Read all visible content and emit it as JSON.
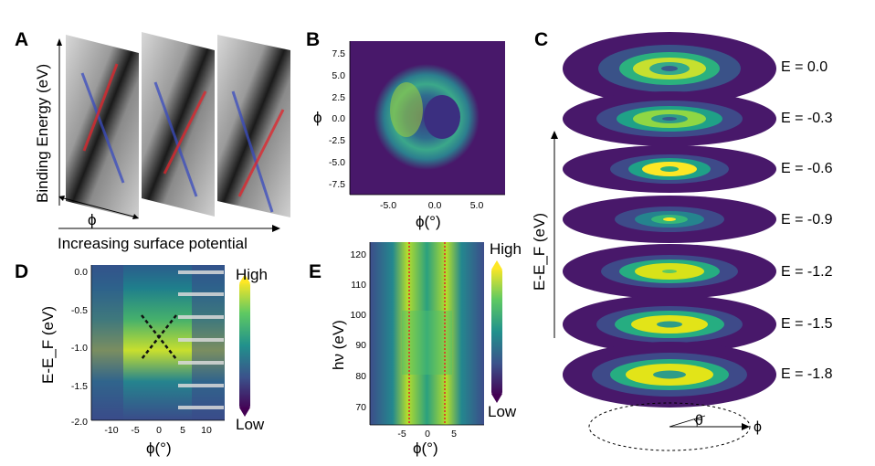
{
  "panel_labels": {
    "a": "A",
    "b": "B",
    "c": "C",
    "d": "D",
    "e": "E"
  },
  "panel_a": {
    "y_label": "Binding Energy (eV)",
    "x_label": "ϕ",
    "arrow_label": "Increasing surface potential"
  },
  "panel_b": {
    "y_label": "ϕ",
    "x_label": "ϕ(°)",
    "y_ticks": [
      "7.5",
      "5.0",
      "2.5",
      "0.0",
      "-2.5",
      "-5.0",
      "-7.5"
    ],
    "x_ticks": [
      "-5.0",
      "0.0",
      "5.0"
    ]
  },
  "panel_c": {
    "y_label": "E-E_F (eV)",
    "energies": [
      "E =  0.0",
      "E = -0.3",
      "E = -0.6",
      "E = -0.9",
      "E = -1.2",
      "E = -1.5",
      "E = -1.8"
    ],
    "theta_label": "θ",
    "phi_label": "ϕ"
  },
  "panel_d": {
    "y_label": "E-E_F (eV)",
    "x_label": "ϕ(°)",
    "y_ticks": [
      "0.0",
      "-0.5",
      "-1.0",
      "-1.5",
      "-2.0"
    ],
    "x_ticks": [
      "-10",
      "-5",
      "0",
      "5",
      "10"
    ],
    "cbar_high": "High",
    "cbar_low": "Low"
  },
  "panel_e": {
    "y_label": "hν (eV)",
    "x_label": "ϕ(°)",
    "y_ticks": [
      "120",
      "110",
      "100",
      "90",
      "80",
      "70"
    ],
    "x_ticks": [
      "-5",
      "0",
      "5"
    ],
    "cbar_high": "High",
    "cbar_low": "Low"
  },
  "colors": {
    "viridis_dark": "#440154",
    "viridis_purple": "#48186a",
    "viridis_blue": "#31688e",
    "viridis_teal": "#21918c",
    "viridis_green": "#35b779",
    "viridis_yellow": "#fde725",
    "red_band": "#e3242b",
    "blue_band": "#3a4cc0"
  }
}
